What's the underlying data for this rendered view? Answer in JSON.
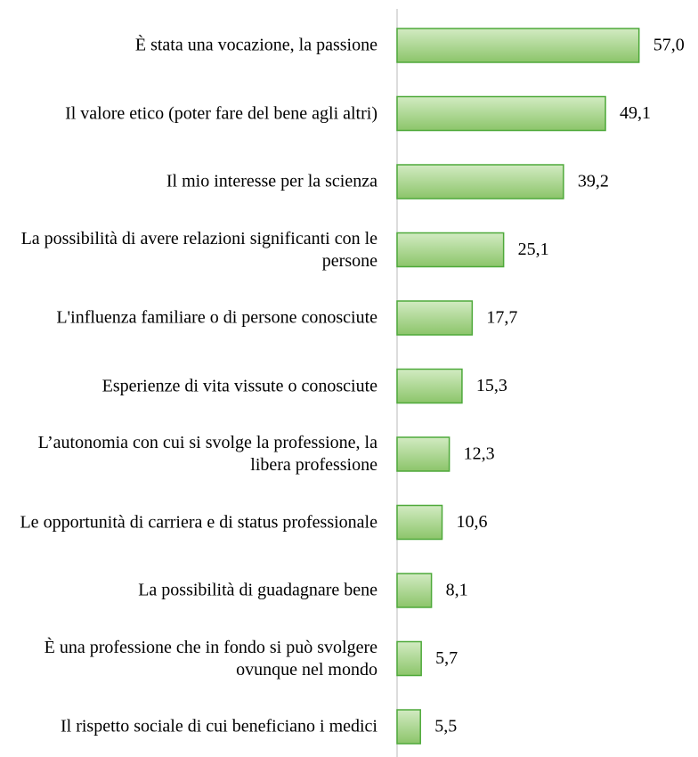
{
  "chart_data": {
    "type": "bar",
    "orientation": "horizontal",
    "categories": [
      "È stata una vocazione, la passione",
      "Il valore etico (poter fare del bene agli altri)",
      "Il mio interesse per la scienza",
      "La possibilità di avere relazioni significanti con le persone",
      "L'influenza familiare o di persone conosciute",
      "Esperienze di vita vissute o conosciute",
      "L’autonomia con cui si svolge la professione, la libera professione",
      "Le opportunità di carriera e di status professionale",
      "La possibilità di guadagnare bene",
      "È una professione che in fondo si può svolgere ovunque nel mondo",
      "Il rispetto sociale di cui beneficiano i medici"
    ],
    "values": [
      57.0,
      49.1,
      39.2,
      25.1,
      17.7,
      15.3,
      12.3,
      10.6,
      8.1,
      5.7,
      5.5
    ],
    "value_labels": [
      "57,0",
      "49,1",
      "39,2",
      "25,1",
      "17,7",
      "15,3",
      "12,3",
      "10,6",
      "8,1",
      "5,7",
      "5,5"
    ],
    "color": "#8cc56a",
    "xlim": [
      0,
      60
    ]
  }
}
